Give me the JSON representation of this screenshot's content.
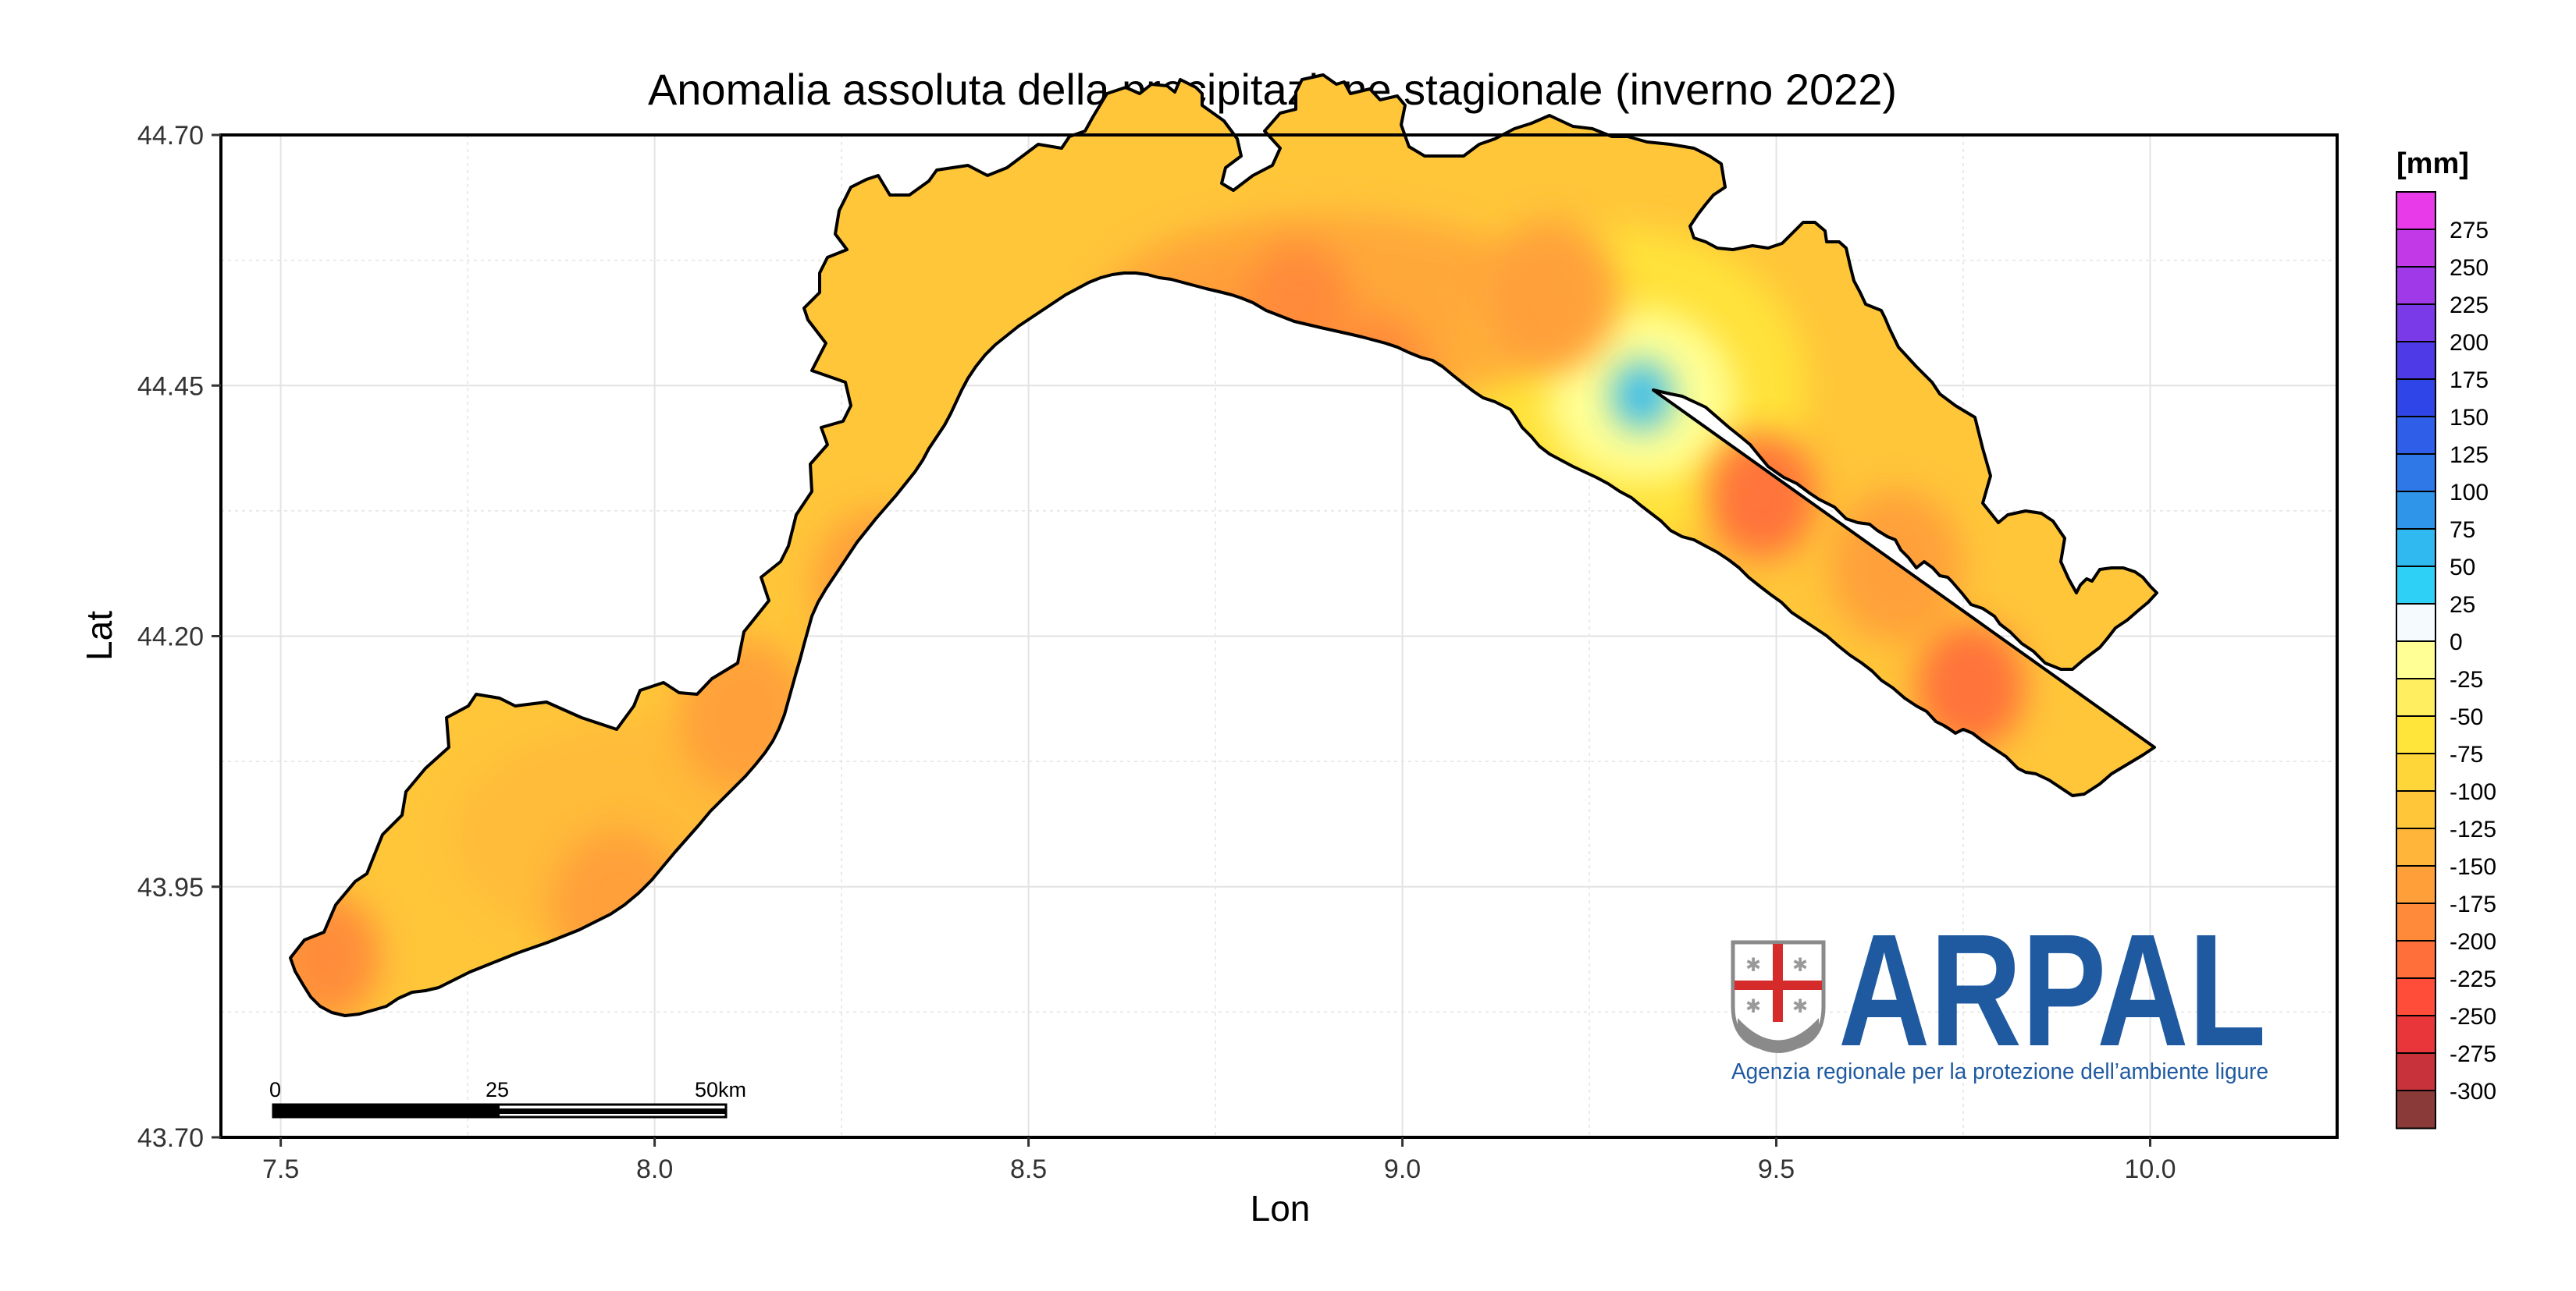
{
  "title": "Anomalia assoluta della precipitazione stagionale (inverno 2022)",
  "x_axis": {
    "label": "Lon",
    "range": [
      7.42,
      10.25
    ],
    "ticks": [
      7.5,
      8.0,
      8.5,
      9.0,
      9.5,
      10.0
    ],
    "tick_labels": [
      "7.5",
      "8.0",
      "8.5",
      "9.0",
      "9.5",
      "10.0"
    ]
  },
  "y_axis": {
    "label": "Lat",
    "range": [
      43.7,
      44.7
    ],
    "ticks": [
      43.7,
      43.95,
      44.2,
      44.45,
      44.7
    ],
    "tick_labels": [
      "43.70",
      "43.95",
      "44.20",
      "44.45",
      "44.70"
    ]
  },
  "legend": {
    "title": "[mm]",
    "labels": [
      "275",
      "250",
      "225",
      "200",
      "175",
      "150",
      "125",
      "100",
      "75",
      "50",
      "25",
      "0",
      "-25",
      "-50",
      "-75",
      "-100",
      "-125",
      "-150",
      "-175",
      "-200",
      "-225",
      "-250",
      "-275",
      "-300"
    ],
    "colors": [
      "#e83ae8",
      "#c23ae8",
      "#a03ae8",
      "#7a3ae8",
      "#4f3ae8",
      "#2f45e8",
      "#2f5ee8",
      "#2f78e8",
      "#2f95e8",
      "#30b8f0",
      "#2fd0f5",
      "#f5faff",
      "#ffff95",
      "#ffef60",
      "#ffe53a",
      "#ffd63a",
      "#ffc63a",
      "#ffb53a",
      "#ff9f3a",
      "#ff8a3a",
      "#ff6f3a",
      "#ff4d3a",
      "#e8363a",
      "#c8323a",
      "#8b3a3a"
    ]
  },
  "scale_bar": {
    "labels": [
      "0",
      "25",
      "50km"
    ]
  },
  "logo": {
    "name": "ARPAL",
    "subtitle": "Agenzia regionale per la protezione dell’ambiente ligure"
  },
  "map_data": {
    "type": "heatmap",
    "region": "Liguria",
    "colors": {
      "base": "#ffc63a",
      "outline": "#000000",
      "grid": "#e3e3e3"
    },
    "anomaly_spots": [
      {
        "lon": 7.56,
        "lat": 43.88,
        "value": -200
      },
      {
        "lon": 8.3,
        "lat": 44.25,
        "value": -175
      },
      {
        "lon": 8.12,
        "lat": 44.12,
        "value": -175
      },
      {
        "lon": 7.95,
        "lat": 43.93,
        "value": -175
      },
      {
        "lon": 8.75,
        "lat": 44.5,
        "value": -175
      },
      {
        "lon": 8.86,
        "lat": 44.53,
        "value": -200
      },
      {
        "lon": 8.96,
        "lat": 44.46,
        "value": -200
      },
      {
        "lon": 9.2,
        "lat": 44.54,
        "value": -175
      },
      {
        "lon": 9.32,
        "lat": 44.44,
        "value": 50
      },
      {
        "lon": 9.48,
        "lat": 44.34,
        "value": -225
      },
      {
        "lon": 9.66,
        "lat": 44.27,
        "value": -175
      },
      {
        "lon": 9.76,
        "lat": 44.15,
        "value": -225
      }
    ]
  }
}
